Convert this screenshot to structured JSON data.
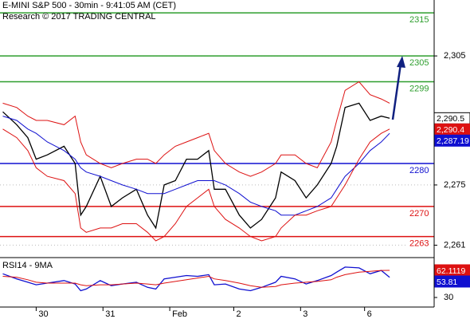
{
  "chart_data": [
    {
      "type": "line",
      "title": "E-MINI S&P 500 - 30min - 9:41:05 AM (CET)",
      "subtitle": "Research © 2017 TRADING CENTRAL",
      "x": [
        1,
        6,
        10,
        13,
        17,
        23,
        27,
        29,
        31,
        36,
        40,
        44,
        49,
        53,
        56,
        59,
        63,
        67,
        71,
        75,
        77,
        81,
        86,
        90,
        94,
        99,
        101,
        106,
        110,
        114,
        119,
        121,
        124,
        129,
        133,
        137,
        140
      ],
      "series": [
        {
          "color": "#000000",
          "values": [
            2292,
            2289,
            2286,
            2281,
            2282,
            2284,
            2280,
            2268,
            2270,
            2277,
            2270,
            2272,
            2274,
            2268,
            2265,
            2275,
            2276,
            2281,
            2281,
            2283,
            2274,
            2274,
            2268,
            2265,
            2267,
            2272,
            2278,
            2276,
            2272,
            2275,
            2280,
            2284,
            2293,
            2294,
            2290,
            2291,
            2290.5
          ]
        },
        {
          "color": "#1010d0",
          "values": [
            2291,
            2290,
            2288,
            2287,
            2285,
            2283,
            2281,
            2279,
            2278,
            2277,
            2276,
            2275,
            2274,
            2273,
            2273,
            2273,
            2274,
            2275,
            2276,
            2276,
            2276,
            2275,
            2273,
            2271,
            2270,
            2269,
            2268,
            2268,
            2269,
            2270,
            2272,
            2274,
            2277,
            2280,
            2283,
            2285,
            2287
          ]
        },
        {
          "color": "#dd1111",
          "values": [
            2294,
            2293,
            2291,
            2290,
            2290,
            2289,
            2291,
            2285,
            2282,
            2280,
            2279,
            2280,
            2281,
            2281,
            2280,
            2282,
            2284,
            2285,
            2286,
            2287,
            2283,
            2280,
            2278,
            2277,
            2278,
            2280,
            2282,
            2282,
            2280,
            2279,
            2285,
            2290,
            2297,
            2299,
            2296,
            2295,
            2294
          ]
        },
        {
          "color": "#dd1111",
          "values": [
            2288,
            2286,
            2283,
            2279,
            2277,
            2276,
            2273,
            2265,
            2264,
            2265,
            2265,
            2266,
            2266,
            2264,
            2262,
            2263,
            2266,
            2270,
            2272,
            2274,
            2270,
            2267,
            2265,
            2263,
            2262,
            2263,
            2265,
            2268,
            2268,
            2269,
            2270,
            2272,
            2275,
            2281,
            2285,
            2287,
            2288
          ]
        }
      ],
      "xlim": [
        0,
        156
      ],
      "xticks": [
        {
          "value": 13,
          "label": "30"
        },
        {
          "value": 37,
          "label": "31"
        },
        {
          "value": 61,
          "label": "Feb"
        },
        {
          "value": 84,
          "label": "2"
        },
        {
          "value": 108,
          "label": "3"
        },
        {
          "value": 131,
          "label": "6"
        }
      ],
      "ylim": [
        2258.3,
        2318
      ],
      "yticks": [
        {
          "value": 2305,
          "label": "2,305"
        },
        {
          "value": 2275,
          "label": "2,275"
        },
        {
          "value": 2261,
          "label": "2,261"
        }
      ],
      "grid": true,
      "levels": [
        {
          "value": 2315,
          "color": "#2e9e2e"
        },
        {
          "value": 2305,
          "color": "#2e9e2e"
        },
        {
          "value": 2299,
          "color": "#2e9e2e"
        },
        {
          "value": 2280,
          "color": "#1010d0"
        },
        {
          "value": 2270,
          "color": "#dd1111"
        },
        {
          "value": 2263,
          "color": "#dd1111"
        }
      ],
      "price_tags": [
        {
          "value": 2290.5,
          "label": "2,290.5",
          "color": "#000000"
        },
        {
          "value": 2290.4,
          "label": "2,290.4",
          "color": "#dd1111"
        },
        {
          "value": 2287.19,
          "label": "2,287.19",
          "color": "#1010d0"
        }
      ]
    },
    {
      "type": "line",
      "title": "RSI14 - 9MA",
      "x": [
        1,
        6,
        10,
        13,
        17,
        23,
        27,
        29,
        31,
        36,
        40,
        44,
        49,
        53,
        56,
        59,
        63,
        67,
        71,
        75,
        77,
        81,
        86,
        90,
        94,
        99,
        101,
        106,
        110,
        114,
        119,
        121,
        124,
        129,
        133,
        137,
        140
      ],
      "series": [
        {
          "color": "#1010d0",
          "values": [
            58,
            52,
            48,
            45,
            47,
            50,
            46,
            38,
            40,
            50,
            44,
            46,
            48,
            42,
            40,
            52,
            54,
            56,
            55,
            57,
            45,
            46,
            40,
            38,
            42,
            48,
            55,
            52,
            46,
            50,
            56,
            60,
            66,
            65,
            58,
            62,
            53.81
          ]
        },
        {
          "color": "#dd1111",
          "values": [
            55,
            54,
            51,
            48,
            47,
            47,
            47,
            45,
            44,
            45,
            45,
            46,
            47,
            46,
            45,
            47,
            49,
            51,
            53,
            55,
            52,
            50,
            47,
            44,
            42,
            43,
            45,
            47,
            48,
            49,
            51,
            54,
            57,
            60,
            61,
            62,
            62.1119
          ]
        }
      ],
      "xlim": [
        0,
        156
      ],
      "ylim": [
        18.7,
        75.3
      ],
      "yticks": [
        30
      ],
      "price_tags": [
        {
          "value": 62.1119,
          "label": "62.1119",
          "color": "#dd1111"
        },
        {
          "value": 53.81,
          "label": "53.81",
          "color": "#1010d0"
        }
      ]
    }
  ]
}
